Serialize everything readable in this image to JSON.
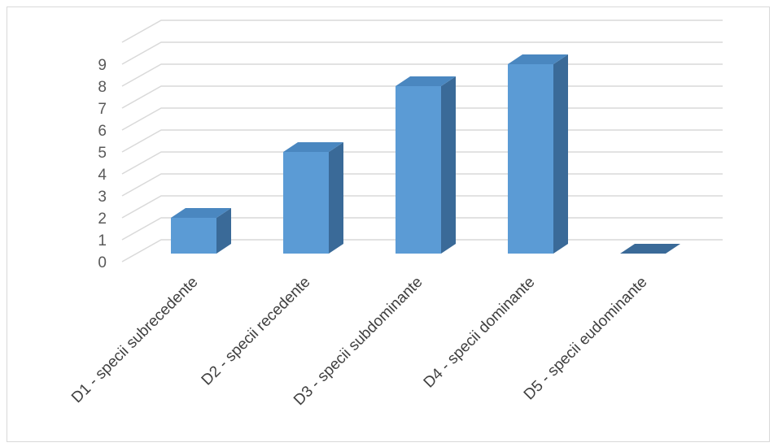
{
  "chart_data": {
    "type": "bar",
    "style": "3d-clustered-column",
    "categories": [
      "D1 - specii subrecedente",
      "D2 - specii recedente",
      "D3 - specii subdominante",
      "D4 - specii dominante",
      "D5 - specii eudominante"
    ],
    "series": [
      {
        "values": [
          2,
          5,
          8,
          9,
          0
        ]
      }
    ],
    "ylim": [
      0,
      10
    ],
    "yticks": [
      0,
      1,
      2,
      3,
      4,
      5,
      6,
      7,
      8,
      9
    ],
    "title": "",
    "xlabel": "",
    "ylabel": "",
    "grid": true,
    "legend": "none",
    "colors": {
      "bar_front": "#5b9bd5",
      "bar_top": "#4a87c0",
      "bar_side": "#3a6a98",
      "grid": "#d9d9d9",
      "tick_text": "#595959",
      "category_text": "#404040"
    }
  }
}
